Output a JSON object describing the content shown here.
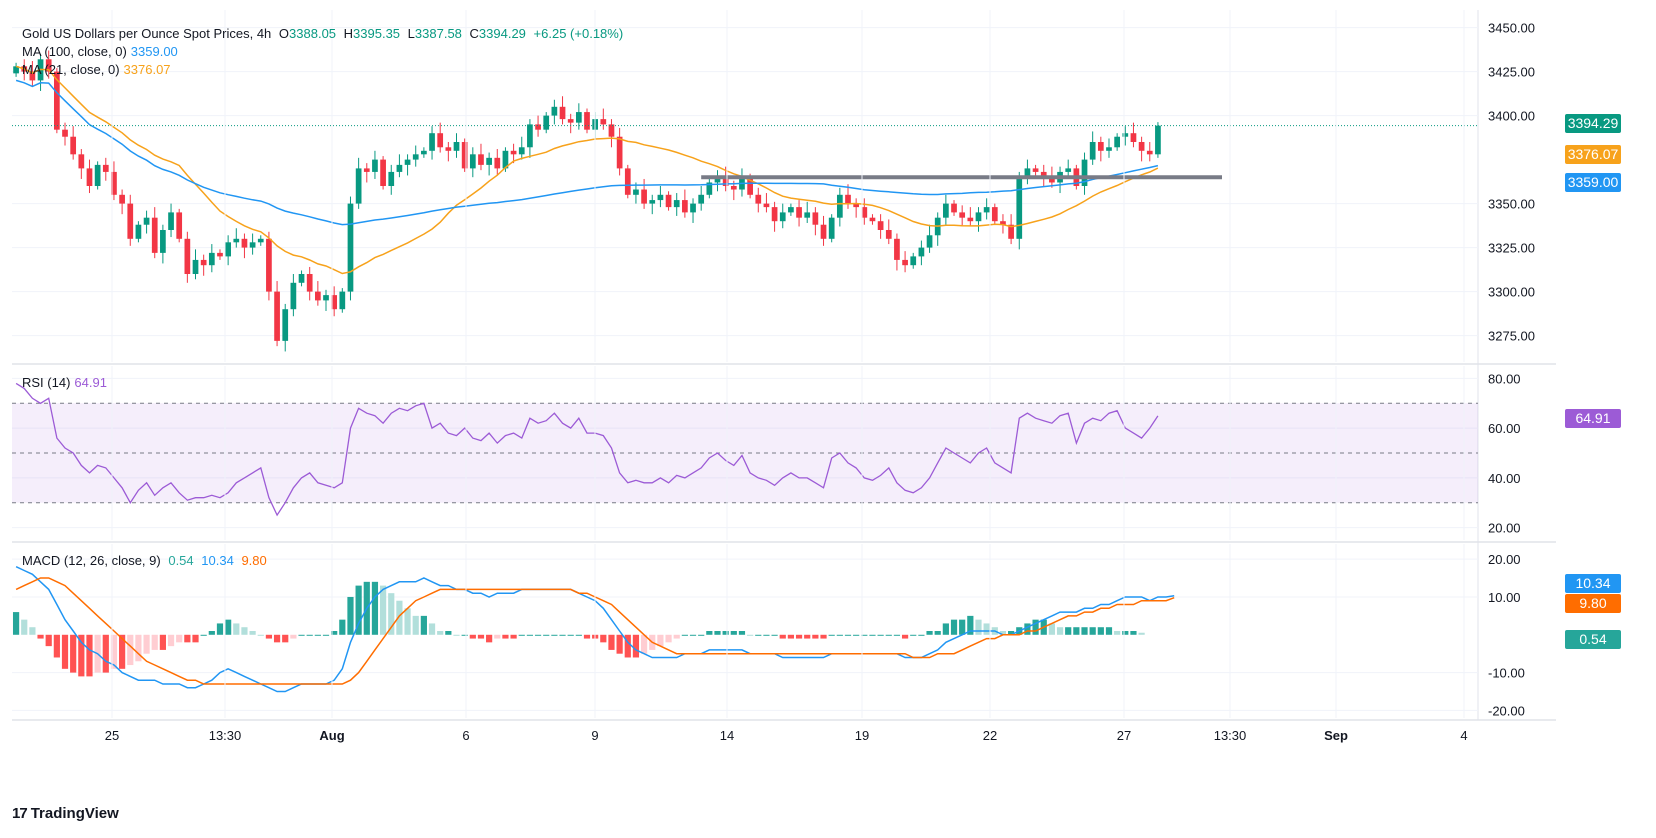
{
  "header": {
    "title": "Gold US Dollars per Ounce Spot Prices, 4h",
    "open_label": "O",
    "open": "3388.05",
    "high_label": "H",
    "high": "3395.35",
    "low_label": "L",
    "low": "3387.58",
    "close_label": "C",
    "close": "3394.29",
    "change": "+6.25 (+0.18%)"
  },
  "indicators": {
    "ma100": {
      "label": "MA (100, close, 0)",
      "value": "3359.00",
      "color": "#2196f3"
    },
    "ma21": {
      "label": "MA (21, close, 0)",
      "value": "3376.07",
      "color": "#f7a21b"
    },
    "rsi": {
      "label": "RSI (14)",
      "value": "64.91",
      "color": "#9c5bd6"
    },
    "macd": {
      "label": "MACD (12, 26, close, 9)",
      "hist": "0.54",
      "macd": "10.34",
      "signal": "9.80",
      "hist_color": "#26a69a",
      "macd_color": "#2196f3",
      "signal_color": "#ff6d00"
    }
  },
  "price_tags": {
    "last": {
      "text": "3394.29",
      "color": "#089981"
    },
    "ma21": {
      "text": "3376.07",
      "color": "#f7a21b"
    },
    "ma100": {
      "text": "3359.00",
      "color": "#2196f3"
    },
    "rsi": {
      "text": "64.91",
      "color": "#9c5bd6"
    },
    "macd": {
      "text": "10.34",
      "color": "#2196f3"
    },
    "signal": {
      "text": "9.80",
      "color": "#ff6d00"
    },
    "hist": {
      "text": "0.54",
      "color": "#26a69a"
    }
  },
  "colors": {
    "up": "#089981",
    "down": "#f23645",
    "grid": "#f0f3fa",
    "axis_text": "#131722"
  },
  "brand": "TradingView",
  "chart_data": [
    {
      "type": "candlestick",
      "title": "Gold US Dollars per Ounce Spot Prices, 4h",
      "ylim": [
        3260,
        3460
      ],
      "yticks": [
        "3450.00",
        "3425.00",
        "3400.00",
        "3350.00",
        "3325.00",
        "3300.00",
        "3275.00"
      ],
      "xticks": [
        "25",
        "13:30",
        "Aug",
        "6",
        "9",
        "14",
        "19",
        "22",
        "27",
        "13:30",
        "Sep",
        "4"
      ],
      "close": [
        3428,
        3425,
        3420,
        3432,
        3425,
        3392,
        3388,
        3378,
        3370,
        3360,
        3372,
        3368,
        3355,
        3350,
        3330,
        3338,
        3342,
        3322,
        3335,
        3345,
        3330,
        3310,
        3318,
        3315,
        3322,
        3320,
        3328,
        3330,
        3325,
        3328,
        3330,
        3300,
        3272,
        3290,
        3305,
        3310,
        3300,
        3295,
        3298,
        3290,
        3300,
        3350,
        3370,
        3368,
        3375,
        3360,
        3368,
        3372,
        3375,
        3378,
        3380,
        3390,
        3382,
        3380,
        3385,
        3370,
        3378,
        3372,
        3376,
        3370,
        3380,
        3378,
        3382,
        3395,
        3392,
        3400,
        3405,
        3398,
        3396,
        3402,
        3392,
        3398,
        3395,
        3388,
        3370,
        3355,
        3358,
        3350,
        3352,
        3355,
        3348,
        3352,
        3345,
        3350,
        3355,
        3362,
        3365,
        3360,
        3358,
        3365,
        3355,
        3350,
        3348,
        3340,
        3345,
        3348,
        3342,
        3345,
        3338,
        3330,
        3342,
        3355,
        3350,
        3348,
        3342,
        3340,
        3335,
        3330,
        3318,
        3315,
        3320,
        3325,
        3332,
        3342,
        3350,
        3345,
        3342,
        3340,
        3345,
        3348,
        3340,
        3338,
        3330,
        3365,
        3370,
        3368,
        3365,
        3362,
        3368,
        3370,
        3360,
        3375,
        3385,
        3380,
        3382,
        3388,
        3390,
        3385,
        3380,
        3378,
        3394.29
      ]
    },
    {
      "type": "line",
      "title": "RSI (14)",
      "ylim": [
        15,
        85
      ],
      "yticks": [
        "80.00",
        "60.00",
        "40.00",
        "20.00"
      ],
      "bands": [
        30,
        50,
        70
      ],
      "series": [
        {
          "name": "RSI (14)",
          "values": [
            78,
            76,
            72,
            70,
            72,
            56,
            52,
            50,
            45,
            42,
            45,
            44,
            40,
            36,
            30,
            35,
            38,
            33,
            36,
            38,
            34,
            31,
            32,
            32,
            33,
            32,
            34,
            38,
            40,
            42,
            44,
            32,
            25,
            30,
            36,
            40,
            42,
            38,
            37,
            36,
            38,
            60,
            68,
            66,
            65,
            62,
            66,
            68,
            67,
            69,
            70,
            60,
            62,
            58,
            57,
            60,
            56,
            55,
            58,
            54,
            57,
            58,
            56,
            64,
            62,
            63,
            66,
            62,
            60,
            64,
            58,
            58,
            57,
            52,
            42,
            38,
            39,
            38,
            38,
            40,
            38,
            41,
            40,
            42,
            44,
            48,
            50,
            47,
            45,
            49,
            42,
            40,
            39,
            37,
            40,
            42,
            40,
            40,
            38,
            36,
            48,
            50,
            46,
            44,
            40,
            39,
            41,
            44,
            38,
            35,
            34,
            36,
            40,
            46,
            52,
            50,
            48,
            46,
            50,
            52,
            46,
            44,
            42,
            64,
            66,
            64,
            63,
            62,
            65,
            66,
            54,
            62,
            64,
            63,
            66,
            67,
            60,
            58,
            56,
            60,
            64.91
          ]
        }
      ]
    },
    {
      "type": "line+bar",
      "title": "MACD (12, 26, close, 9)",
      "ylim": [
        -22,
        24
      ],
      "yticks": [
        "20.00",
        "10.00",
        "-10.00",
        "-20.00"
      ],
      "series": [
        {
          "name": "MACD",
          "values": [
            18,
            17,
            16,
            14,
            12,
            8,
            4,
            1,
            -2,
            -4,
            -5,
            -7,
            -8,
            -10,
            -11,
            -12,
            -12,
            -12,
            -13,
            -13,
            -13,
            -14,
            -14,
            -13,
            -12,
            -10,
            -9,
            -10,
            -11,
            -12,
            -13,
            -14,
            -15,
            -15,
            -14,
            -13,
            -13,
            -13,
            -13,
            -12,
            -9,
            -2,
            3,
            7,
            10,
            12,
            13,
            14,
            14,
            14,
            15,
            14,
            13,
            13,
            12,
            12,
            11,
            11,
            10,
            11,
            11,
            11,
            12,
            12,
            12,
            12,
            12,
            12,
            12,
            11,
            10,
            9,
            7,
            4,
            1,
            -2,
            -4,
            -5,
            -6,
            -6,
            -6,
            -6,
            -5,
            -5,
            -5,
            -4,
            -4,
            -4,
            -4,
            -4,
            -5,
            -5,
            -5,
            -5,
            -6,
            -6,
            -6,
            -6,
            -6,
            -6,
            -5,
            -5,
            -5,
            -5,
            -5,
            -5,
            -5,
            -5,
            -5,
            -6,
            -6,
            -6,
            -5,
            -4,
            -2,
            -1,
            0,
            1,
            1,
            1,
            1,
            0,
            0,
            1,
            2,
            3,
            4,
            5,
            6,
            6,
            6,
            7,
            7,
            8,
            8,
            9,
            10,
            10,
            10,
            9,
            10,
            10,
            10.34
          ]
        },
        {
          "name": "Signal",
          "values": [
            12,
            13,
            14,
            15,
            15,
            14,
            13,
            11,
            9,
            7,
            5,
            3,
            1,
            -1,
            -3,
            -5,
            -7,
            -8,
            -9,
            -10,
            -11,
            -12,
            -12,
            -13,
            -13,
            -13,
            -13,
            -13,
            -13,
            -13,
            -13,
            -13,
            -13,
            -13,
            -13,
            -13,
            -13,
            -13,
            -13,
            -13,
            -13,
            -12,
            -10,
            -7,
            -4,
            -1,
            2,
            5,
            7,
            9,
            10,
            11,
            12,
            12,
            12,
            12,
            12,
            12,
            12,
            12,
            12,
            12,
            12,
            12,
            12,
            12,
            12,
            12,
            12,
            11,
            11,
            10,
            9,
            8,
            6,
            4,
            2,
            0,
            -2,
            -3,
            -4,
            -5,
            -5,
            -5,
            -5,
            -5,
            -5,
            -5,
            -5,
            -5,
            -5,
            -5,
            -5,
            -5,
            -5,
            -5,
            -5,
            -5,
            -5,
            -5,
            -5,
            -5,
            -5,
            -5,
            -5,
            -5,
            -5,
            -5,
            -5,
            -5,
            -6,
            -6,
            -6,
            -5,
            -5,
            -5,
            -4,
            -3,
            -2,
            -1,
            -1,
            0,
            0,
            0,
            1,
            1,
            2,
            3,
            4,
            5,
            5,
            6,
            6,
            7,
            7,
            8,
            8,
            8,
            9,
            9,
            9,
            9,
            9.8
          ]
        },
        {
          "name": "Histogram",
          "values": [
            6,
            4,
            2,
            -1,
            -3,
            -6,
            -9,
            -10,
            -11,
            -11,
            -10,
            -10,
            -9,
            -9,
            -8,
            -7,
            -5,
            -4,
            -4,
            -3,
            -2,
            -2,
            -2,
            0,
            1,
            3,
            4,
            3,
            2,
            1,
            0,
            -1,
            -2,
            -2,
            -1,
            0,
            0,
            0,
            0,
            1,
            4,
            10,
            13,
            14,
            14,
            13,
            11,
            9,
            7,
            5,
            5,
            3,
            1,
            1,
            0,
            0,
            -1,
            -1,
            -2,
            -1,
            -1,
            -1,
            0,
            0,
            0,
            0,
            0,
            0,
            0,
            0,
            -1,
            -1,
            -2,
            -4,
            -5,
            -6,
            -6,
            -5,
            -4,
            -3,
            -2,
            -1,
            0,
            0,
            0,
            1,
            1,
            1,
            1,
            1,
            0,
            0,
            0,
            0,
            -1,
            -1,
            -1,
            -1,
            -1,
            -1,
            0,
            0,
            0,
            0,
            0,
            0,
            0,
            0,
            0,
            -1,
            0,
            0,
            1,
            1,
            3,
            4,
            4,
            5,
            4,
            3,
            2,
            1,
            1,
            2,
            3,
            4,
            4,
            3,
            2,
            2,
            2,
            2,
            2,
            2,
            2,
            1,
            1,
            1,
            0.54
          ]
        }
      ],
      "hist_name": "Histogram"
    }
  ]
}
